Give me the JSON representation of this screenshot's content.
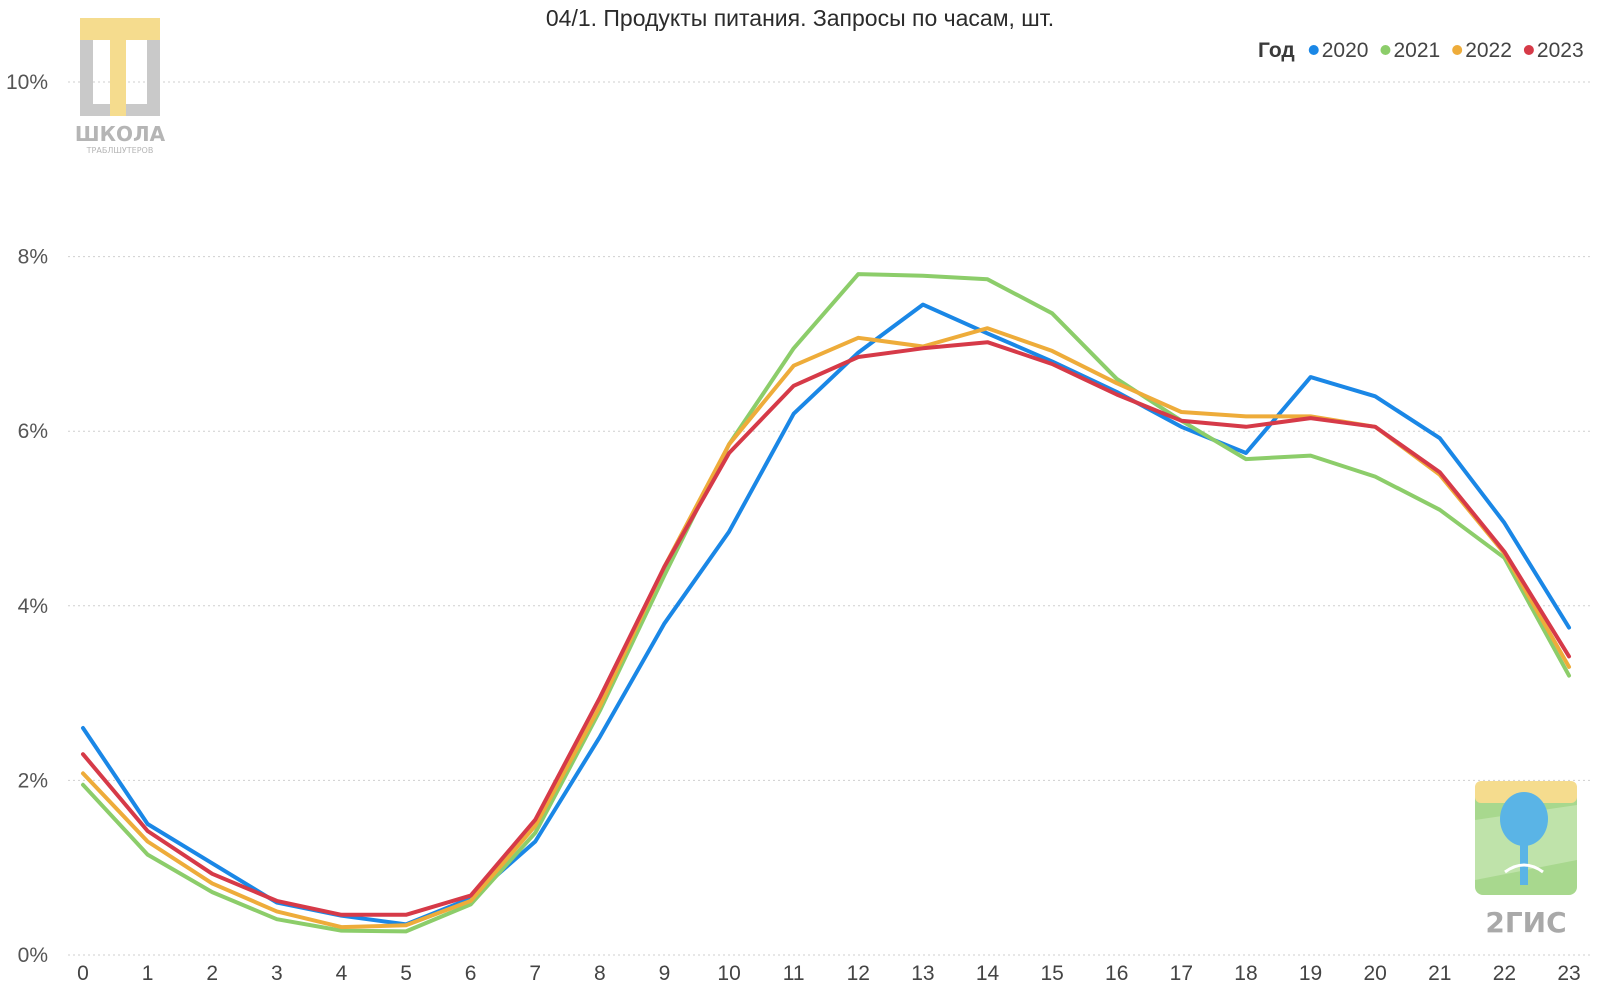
{
  "chart_data": {
    "type": "line",
    "title": "04/1. Продукты питания. Запросы по часам, шт.",
    "xlabel": "",
    "ylabel": "",
    "x": [
      0,
      1,
      2,
      3,
      4,
      5,
      6,
      7,
      8,
      9,
      10,
      11,
      12,
      13,
      14,
      15,
      16,
      17,
      18,
      19,
      20,
      21,
      22,
      23
    ],
    "x_tick_labels": [
      "0",
      "1",
      "2",
      "3",
      "4",
      "5",
      "6",
      "7",
      "8",
      "9",
      "10",
      "11",
      "12",
      "13",
      "14",
      "15",
      "16",
      "17",
      "18",
      "19",
      "20",
      "21",
      "22",
      "23"
    ],
    "ylim": [
      0,
      10
    ],
    "y_ticks": [
      0,
      2,
      4,
      6,
      8,
      10
    ],
    "y_tick_labels": [
      "0%",
      "2%",
      "4%",
      "6%",
      "8%",
      "10%"
    ],
    "grid": true,
    "legend": {
      "title": "Год",
      "position": "top-right"
    },
    "series": [
      {
        "name": "2020",
        "color": "#1a87e6",
        "values": [
          2.6,
          1.5,
          1.05,
          0.6,
          0.45,
          0.35,
          0.65,
          1.3,
          2.5,
          3.8,
          4.85,
          6.2,
          6.9,
          7.45,
          7.12,
          6.8,
          6.45,
          6.05,
          5.75,
          6.62,
          6.4,
          5.92,
          4.95,
          3.75
        ]
      },
      {
        "name": "2021",
        "color": "#8ccd6a",
        "values": [
          1.95,
          1.15,
          0.72,
          0.41,
          0.28,
          0.27,
          0.58,
          1.4,
          2.8,
          4.35,
          5.85,
          6.95,
          7.8,
          7.78,
          7.74,
          7.35,
          6.6,
          6.12,
          5.68,
          5.72,
          5.48,
          5.1,
          4.55,
          3.2
        ]
      },
      {
        "name": "2022",
        "color": "#eeac3a",
        "values": [
          2.08,
          1.3,
          0.82,
          0.5,
          0.32,
          0.34,
          0.62,
          1.48,
          2.85,
          4.45,
          5.85,
          6.75,
          7.07,
          6.97,
          7.18,
          6.92,
          6.55,
          6.22,
          6.17,
          6.17,
          6.05,
          5.5,
          4.6,
          3.3
        ]
      },
      {
        "name": "2023",
        "color": "#d63a48",
        "values": [
          2.3,
          1.42,
          0.93,
          0.62,
          0.46,
          0.46,
          0.68,
          1.55,
          2.95,
          4.45,
          5.75,
          6.52,
          6.85,
          6.95,
          7.02,
          6.77,
          6.42,
          6.12,
          6.05,
          6.15,
          6.05,
          5.53,
          4.62,
          3.42
        ]
      }
    ]
  },
  "logos": {
    "school_text": "ШКОЛА",
    "school_subtext": "ТРАБЛШУТЕРОВ",
    "brand_text": "2ГИС"
  }
}
